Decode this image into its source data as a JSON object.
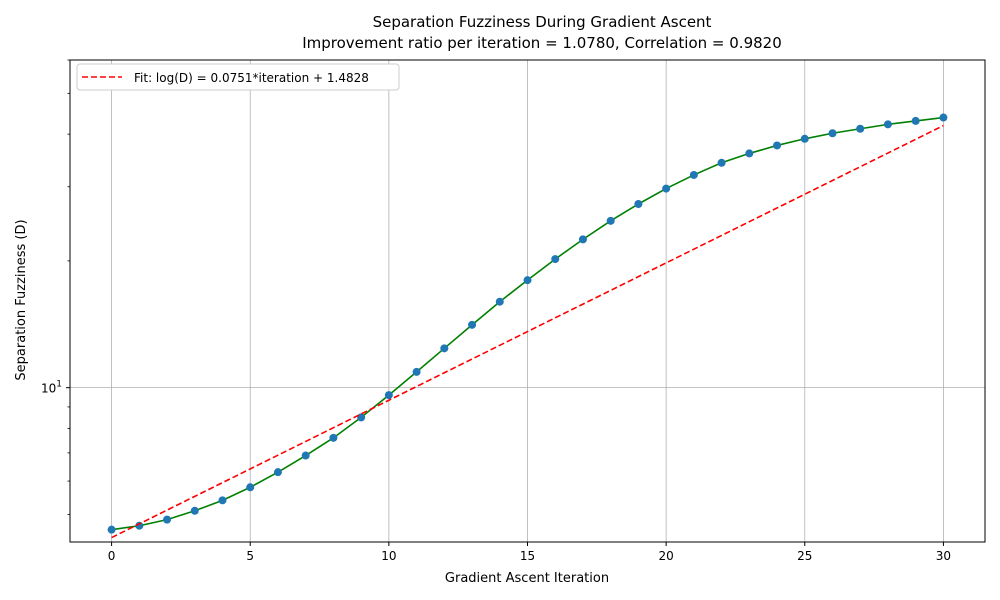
{
  "chart_data": {
    "type": "line",
    "title": "Separation Fuzziness During Gradient Ascent",
    "subtitle": "Improvement ratio per iteration = 1.0780, Correlation = 0.9820",
    "xlabel": "Gradient Ascent Iteration",
    "ylabel": "Separation Fuzziness (D)",
    "yscale": "log",
    "xlim": [
      -1.5,
      31.5
    ],
    "ylim": [
      4.3,
      60
    ],
    "grid": true,
    "legend_position": "top-left",
    "x_ticks": [
      0,
      5,
      10,
      15,
      20,
      25,
      30
    ],
    "y_ticks": [
      10
    ],
    "y_tick_labels": [
      "10^1"
    ],
    "series": [
      {
        "name": "",
        "color": "#008000",
        "marker_color": "#1f77b4",
        "x": [
          0,
          1,
          2,
          3,
          4,
          5,
          6,
          7,
          8,
          9,
          10,
          11,
          12,
          13,
          14,
          15,
          16,
          17,
          18,
          19,
          20,
          21,
          22,
          23,
          24,
          25,
          26,
          27,
          27.999,
          29,
          30
        ],
        "y": [
          4.6,
          4.7,
          4.86,
          5.1,
          5.4,
          5.8,
          6.3,
          6.9,
          7.6,
          8.5,
          9.6,
          10.9,
          12.4,
          14.1,
          16.0,
          18.0,
          20.2,
          22.5,
          24.9,
          27.3,
          29.7,
          32.0,
          34.2,
          36.0,
          37.6,
          39.0,
          40.2,
          41.2,
          42.2,
          43.0,
          43.8
        ],
        "style": "solid-with-markers"
      },
      {
        "name": "Fit: log(D) = 0.0751*iteration + 1.4828",
        "color": "#ff0000",
        "x": [
          0,
          30
        ],
        "slope": 0.0751,
        "intercept": 1.4828,
        "style": "dashed"
      }
    ]
  }
}
